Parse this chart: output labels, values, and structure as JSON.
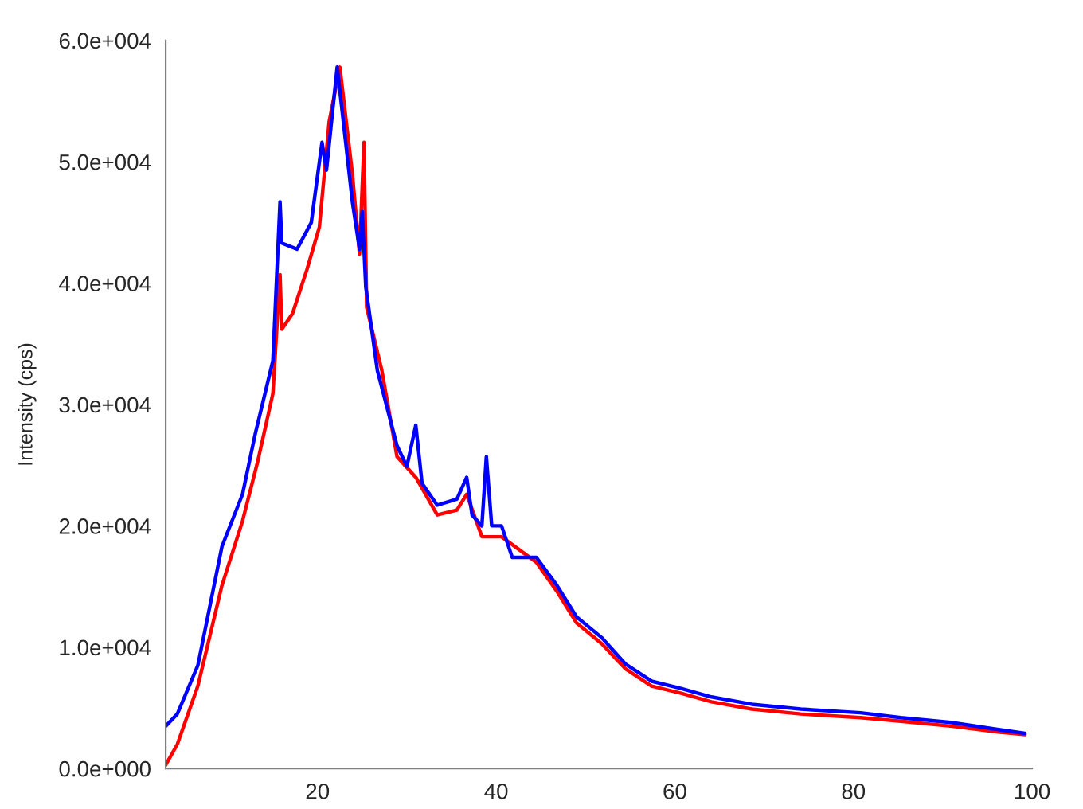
{
  "chart_data": {
    "type": "line",
    "ylabel": "Intensity (cps)",
    "xlim": [
      3,
      100
    ],
    "xticks": [
      20,
      40,
      60,
      80,
      100
    ],
    "ylim": [
      0,
      60000
    ],
    "yticks": [
      {
        "value": 0,
        "label": "0.0e+000"
      },
      {
        "value": 10000,
        "label": "1.0e+004"
      },
      {
        "value": 20000,
        "label": "2.0e+004"
      },
      {
        "value": 30000,
        "label": "3.0e+004"
      },
      {
        "value": 40000,
        "label": "4.0e+004"
      },
      {
        "value": 50000,
        "label": "5.0e+004"
      },
      {
        "value": 60000,
        "label": "6.0e+004"
      }
    ],
    "grid": false,
    "legend": false,
    "series": [
      {
        "color": "#ff0000",
        "x": [
          3.0,
          4.3,
          6.6,
          9.3,
          11.6,
          13.3,
          15.0,
          15.8,
          16.0,
          17.2,
          18.8,
          20.2,
          21.3,
          22.5,
          23.9,
          24.7,
          25.2,
          25.5,
          27.2,
          28.9,
          31.0,
          33.4,
          35.6,
          36.7,
          38.4,
          40.6,
          44.5,
          46.8,
          49.0,
          51.8,
          54.5,
          57.4,
          60.7,
          64.1,
          68.6,
          74.1,
          80.8,
          85.3,
          90.9,
          96.4,
          99.2
        ],
        "values": [
          300,
          2000,
          6800,
          15100,
          20400,
          25300,
          30900,
          40700,
          36200,
          37500,
          41100,
          44600,
          53300,
          57800,
          49000,
          42400,
          51600,
          38000,
          32800,
          25700,
          24000,
          20900,
          21300,
          22600,
          19100,
          19100,
          17000,
          14600,
          12000,
          10300,
          8200,
          6800,
          6200,
          5500,
          4900,
          4500,
          4200,
          3900,
          3500,
          3000,
          2800
        ]
      },
      {
        "color": "#0000ff",
        "x": [
          3.0,
          4.3,
          6.6,
          9.3,
          11.6,
          13.0,
          15.0,
          15.8,
          16.0,
          17.7,
          19.3,
          20.5,
          21.0,
          22.2,
          23.9,
          24.7,
          25.0,
          25.4,
          26.7,
          28.9,
          30.0,
          31.0,
          31.7,
          33.4,
          35.6,
          36.7,
          37.3,
          38.4,
          38.9,
          39.5,
          40.6,
          41.8,
          44.5,
          46.8,
          49.0,
          51.8,
          54.5,
          57.4,
          60.7,
          64.1,
          68.6,
          74.1,
          80.8,
          85.3,
          90.9,
          96.4,
          99.2
        ],
        "values": [
          3500,
          4500,
          8500,
          18300,
          22600,
          27500,
          33600,
          46700,
          43300,
          42800,
          45000,
          51600,
          49300,
          57800,
          46700,
          42800,
          45900,
          39700,
          32800,
          26600,
          24900,
          28300,
          23500,
          21700,
          22200,
          24000,
          20900,
          20000,
          25700,
          20000,
          20000,
          17400,
          17400,
          15100,
          12500,
          10800,
          8600,
          7200,
          6600,
          5900,
          5300,
          4900,
          4600,
          4200,
          3800,
          3200,
          2900
        ]
      }
    ]
  }
}
